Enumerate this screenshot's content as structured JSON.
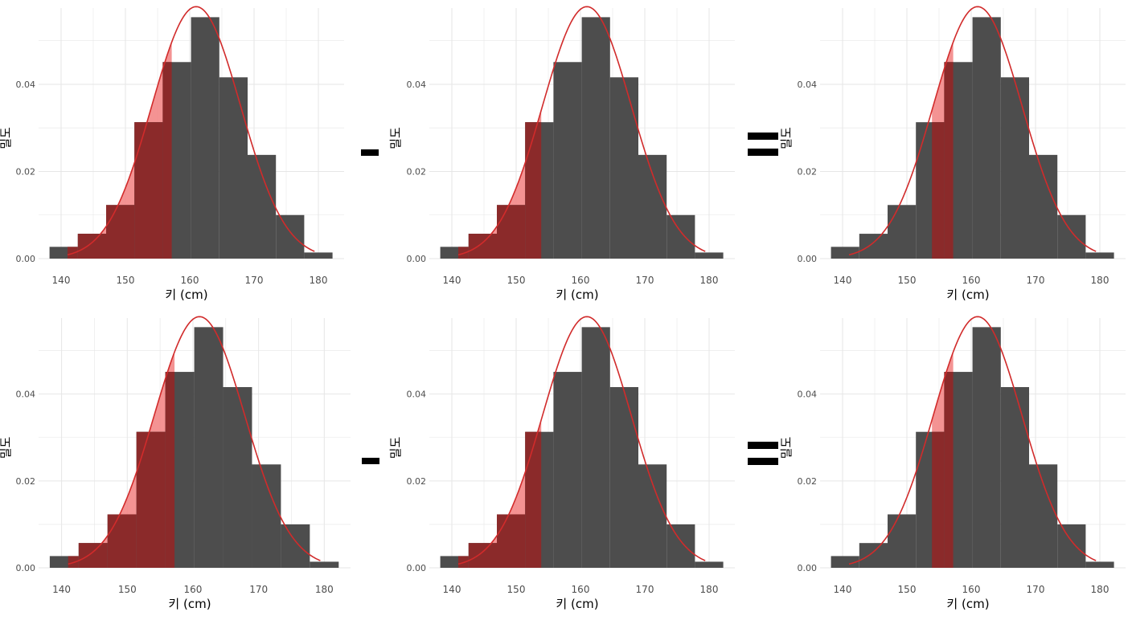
{
  "operators": [
    "-",
    "="
  ],
  "colors": {
    "bar": "#4d4d4d",
    "shade_dark": "#8b2a2a",
    "shade_light": "#f28080",
    "curve": "#d12b2b",
    "grid": "#e6e6e6",
    "tick_text": "#4d4d4d",
    "axis_title": "#000000"
  },
  "chart_data": [
    {
      "panel": "top-left",
      "type": "bar",
      "xlabel": "키 (cm)",
      "ylabel": "밀도",
      "x_ticks": [
        140,
        150,
        160,
        170,
        180
      ],
      "y_ticks": [
        "0.00",
        "0.02",
        "0.04"
      ],
      "xlim": [
        136.5,
        184
      ],
      "ylim": [
        0,
        0.0575
      ],
      "bins": {
        "edges": [
          138.2,
          142.6,
          147.0,
          151.4,
          155.8,
          160.2,
          164.6,
          169.0,
          173.4,
          177.8,
          182.2
        ],
        "density": [
          0.0027,
          0.0057,
          0.0123,
          0.0313,
          0.0451,
          0.0554,
          0.0416,
          0.0238,
          0.01,
          0.0014
        ]
      },
      "normal_curve": {
        "mean": 161,
        "sd": 6.9,
        "x_from": 141,
        "x_to": 179.5
      },
      "shaded_range": [
        141,
        157.2
      ]
    },
    {
      "panel": "top-middle",
      "type": "bar",
      "xlabel": "키 (cm)",
      "ylabel": "밀도",
      "x_ticks": [
        140,
        150,
        160,
        170,
        180
      ],
      "y_ticks": [
        "0.00",
        "0.02",
        "0.04"
      ],
      "xlim": [
        136.5,
        184
      ],
      "ylim": [
        0,
        0.0575
      ],
      "bins": {
        "edges": [
          138.2,
          142.6,
          147.0,
          151.4,
          155.8,
          160.2,
          164.6,
          169.0,
          173.4,
          177.8,
          182.2
        ],
        "density": [
          0.0027,
          0.0057,
          0.0123,
          0.0313,
          0.0451,
          0.0554,
          0.0416,
          0.0238,
          0.01,
          0.0014
        ]
      },
      "normal_curve": {
        "mean": 161,
        "sd": 6.9,
        "x_from": 141,
        "x_to": 179.5
      },
      "shaded_range": [
        141,
        153.9
      ]
    },
    {
      "panel": "top-right",
      "type": "bar",
      "xlabel": "키 (cm)",
      "ylabel": "밀도",
      "x_ticks": [
        140,
        150,
        160,
        170,
        180
      ],
      "y_ticks": [
        "0.00",
        "0.02",
        "0.04"
      ],
      "xlim": [
        136.5,
        184
      ],
      "ylim": [
        0,
        0.0575
      ],
      "bins": {
        "edges": [
          138.2,
          142.6,
          147.0,
          151.4,
          155.8,
          160.2,
          164.6,
          169.0,
          173.4,
          177.8,
          182.2
        ],
        "density": [
          0.0027,
          0.0057,
          0.0123,
          0.0313,
          0.0451,
          0.0554,
          0.0416,
          0.0238,
          0.01,
          0.0014
        ]
      },
      "normal_curve": {
        "mean": 161,
        "sd": 6.9,
        "x_from": 141,
        "x_to": 179.5
      },
      "shaded_range": [
        153.9,
        157.2
      ]
    },
    {
      "panel": "bottom-left",
      "type": "bar",
      "xlabel": "키 (cm)",
      "ylabel": "밀도",
      "x_ticks": [
        140,
        150,
        160,
        170,
        180
      ],
      "y_ticks": [
        "0.00",
        "0.02",
        "0.04"
      ],
      "xlim": [
        136.5,
        184
      ],
      "ylim": [
        0,
        0.0575
      ],
      "bins": {
        "edges": [
          138.2,
          142.6,
          147.0,
          151.4,
          155.8,
          160.2,
          164.6,
          169.0,
          173.4,
          177.8,
          182.2
        ],
        "density": [
          0.0027,
          0.0057,
          0.0123,
          0.0313,
          0.0451,
          0.0554,
          0.0416,
          0.0238,
          0.01,
          0.0014
        ]
      },
      "normal_curve": {
        "mean": 161,
        "sd": 6.9,
        "x_from": 141,
        "x_to": 179.5
      },
      "shaded_range": [
        141,
        157.2
      ]
    },
    {
      "panel": "bottom-middle",
      "type": "bar",
      "xlabel": "키 (cm)",
      "ylabel": "밀도",
      "x_ticks": [
        140,
        150,
        160,
        170,
        180
      ],
      "y_ticks": [
        "0.00",
        "0.02",
        "0.04"
      ],
      "xlim": [
        136.5,
        184
      ],
      "ylim": [
        0,
        0.0575
      ],
      "bins": {
        "edges": [
          138.2,
          142.6,
          147.0,
          151.4,
          155.8,
          160.2,
          164.6,
          169.0,
          173.4,
          177.8,
          182.2
        ],
        "density": [
          0.0027,
          0.0057,
          0.0123,
          0.0313,
          0.0451,
          0.0554,
          0.0416,
          0.0238,
          0.01,
          0.0014
        ]
      },
      "normal_curve": {
        "mean": 161,
        "sd": 6.9,
        "x_from": 141,
        "x_to": 179.5
      },
      "shaded_range": [
        141,
        153.9
      ]
    },
    {
      "panel": "bottom-right",
      "type": "bar",
      "xlabel": "키 (cm)",
      "ylabel": "밀도",
      "x_ticks": [
        140,
        150,
        160,
        170,
        180
      ],
      "y_ticks": [
        "0.00",
        "0.02",
        "0.04"
      ],
      "xlim": [
        136.5,
        184
      ],
      "ylim": [
        0,
        0.0575
      ],
      "bins": {
        "edges": [
          138.2,
          142.6,
          147.0,
          151.4,
          155.8,
          160.2,
          164.6,
          169.0,
          173.4,
          177.8,
          182.2
        ],
        "density": [
          0.0027,
          0.0057,
          0.0123,
          0.0313,
          0.0451,
          0.0554,
          0.0416,
          0.0238,
          0.01,
          0.0014
        ]
      },
      "normal_curve": {
        "mean": 161,
        "sd": 6.9,
        "x_from": 141,
        "x_to": 179.5
      },
      "shaded_range": [
        153.9,
        157.2
      ]
    }
  ]
}
